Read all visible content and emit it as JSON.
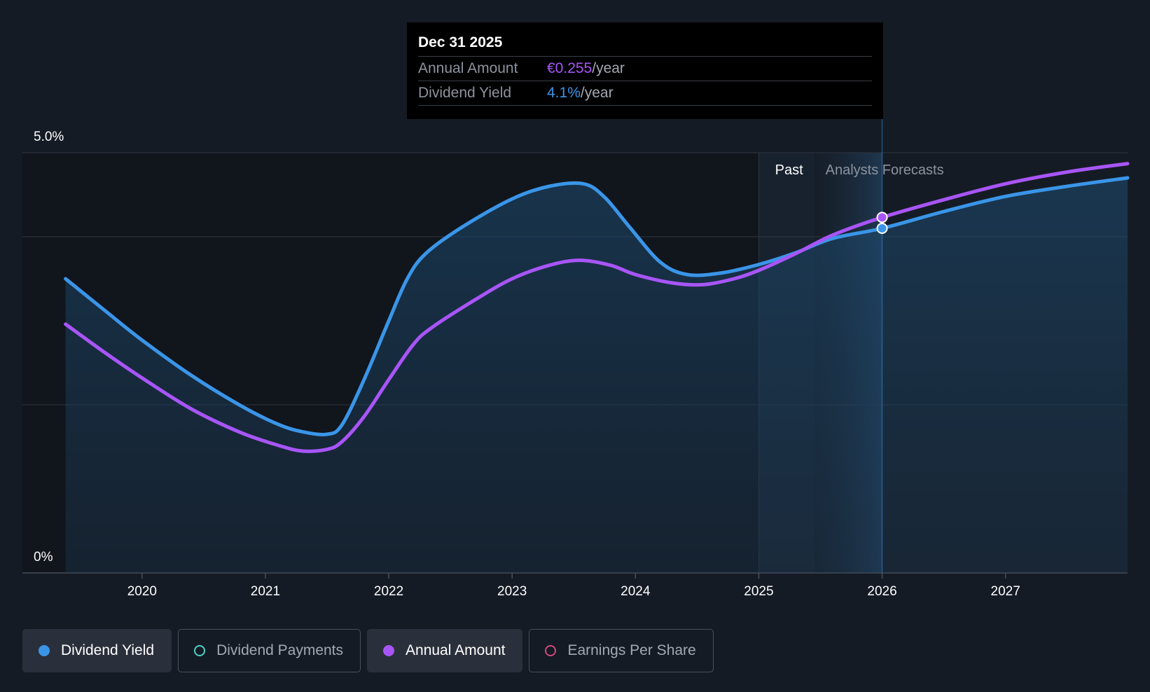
{
  "chart_data": {
    "type": "line",
    "x_axis": {
      "ticks": [
        "2020",
        "2021",
        "2022",
        "2023",
        "2024",
        "2025",
        "2026",
        "2027"
      ],
      "range": [
        2019.03,
        2027.99
      ]
    },
    "y_axis": {
      "tick_labels": {
        "top": "5.0%",
        "bottom": "0%"
      },
      "range": [
        0,
        5.0
      ],
      "gridlines": [
        0,
        2.0,
        4.0,
        5.0
      ]
    },
    "regions": {
      "past_label": "Past",
      "forecast_label": "Analysts Forecasts",
      "past_start": 2025.0,
      "forecast_start": 2025.45,
      "forecast_end": 2026.0
    },
    "series": [
      {
        "name": "Dividend Yield",
        "color": "#3a95e8",
        "area": true,
        "points": [
          [
            2019.38,
            3.5
          ],
          [
            2019.7,
            3.12
          ],
          [
            2020.0,
            2.77
          ],
          [
            2020.4,
            2.35
          ],
          [
            2020.8,
            1.99
          ],
          [
            2021.1,
            1.77
          ],
          [
            2021.3,
            1.68
          ],
          [
            2021.5,
            1.65
          ],
          [
            2021.62,
            1.76
          ],
          [
            2021.8,
            2.3
          ],
          [
            2022.0,
            3.0
          ],
          [
            2022.15,
            3.5
          ],
          [
            2022.3,
            3.8
          ],
          [
            2022.6,
            4.12
          ],
          [
            2023.0,
            4.45
          ],
          [
            2023.3,
            4.6
          ],
          [
            2023.58,
            4.63
          ],
          [
            2023.75,
            4.47
          ],
          [
            2023.95,
            4.12
          ],
          [
            2024.2,
            3.7
          ],
          [
            2024.42,
            3.55
          ],
          [
            2024.7,
            3.57
          ],
          [
            2025.0,
            3.67
          ],
          [
            2025.3,
            3.81
          ],
          [
            2025.6,
            3.98
          ],
          [
            2026.0,
            4.1
          ],
          [
            2026.5,
            4.3
          ],
          [
            2027.0,
            4.48
          ],
          [
            2027.5,
            4.6
          ],
          [
            2027.99,
            4.7
          ]
        ]
      },
      {
        "name": "Annual Amount",
        "color": "#a855f7",
        "area": false,
        "points": [
          [
            2019.38,
            2.96
          ],
          [
            2019.7,
            2.62
          ],
          [
            2020.0,
            2.32
          ],
          [
            2020.4,
            1.95
          ],
          [
            2020.8,
            1.67
          ],
          [
            2021.1,
            1.52
          ],
          [
            2021.3,
            1.45
          ],
          [
            2021.5,
            1.47
          ],
          [
            2021.62,
            1.56
          ],
          [
            2021.8,
            1.86
          ],
          [
            2022.0,
            2.3
          ],
          [
            2022.2,
            2.72
          ],
          [
            2022.35,
            2.92
          ],
          [
            2022.7,
            3.25
          ],
          [
            2023.0,
            3.5
          ],
          [
            2023.3,
            3.66
          ],
          [
            2023.55,
            3.72
          ],
          [
            2023.8,
            3.66
          ],
          [
            2024.0,
            3.55
          ],
          [
            2024.3,
            3.45
          ],
          [
            2024.55,
            3.43
          ],
          [
            2024.8,
            3.5
          ],
          [
            2025.0,
            3.6
          ],
          [
            2025.3,
            3.8
          ],
          [
            2025.6,
            4.02
          ],
          [
            2026.0,
            4.23
          ],
          [
            2026.5,
            4.44
          ],
          [
            2027.0,
            4.63
          ],
          [
            2027.5,
            4.77
          ],
          [
            2027.99,
            4.87
          ]
        ]
      }
    ],
    "highlight_x": 2026.0
  },
  "tooltip": {
    "date": "Dec 31 2025",
    "rows": [
      {
        "label": "Annual Amount",
        "value": "€0.255",
        "unit": "/year"
      },
      {
        "label": "Dividend Yield",
        "value": "4.1%",
        "unit": "/year"
      }
    ]
  },
  "legend": [
    {
      "label": "Dividend Yield",
      "color": "#3a95e8",
      "active": true
    },
    {
      "label": "Dividend Payments",
      "color": "#4fd1c5",
      "active": false
    },
    {
      "label": "Annual Amount",
      "color": "#a855f7",
      "active": true
    },
    {
      "label": "Earnings Per Share",
      "color": "#d1487a",
      "active": false
    }
  ]
}
